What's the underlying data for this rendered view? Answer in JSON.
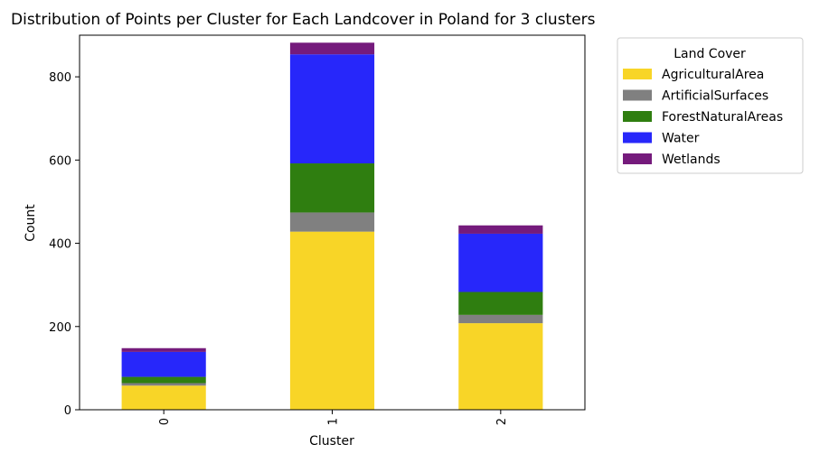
{
  "chart_data": {
    "type": "bar",
    "stacked": true,
    "title": "Distribution of Points per Cluster for Each Landcover in Poland for 3 clusters",
    "xlabel": "Cluster",
    "ylabel": "Count",
    "categories": [
      "0",
      "1",
      "2"
    ],
    "ylim": [
      0,
      900
    ],
    "yticks": [
      0,
      200,
      400,
      600,
      800
    ],
    "grid": false,
    "legend": {
      "title": "Land Cover",
      "placement": "outside-right-top"
    },
    "series": [
      {
        "name": "AgriculturalArea",
        "color": "#F8D527",
        "values": [
          58,
          428,
          208
        ]
      },
      {
        "name": "ArtificialSurfaces",
        "color": "#808080",
        "values": [
          6,
          46,
          20
        ]
      },
      {
        "name": "ForestNaturalAreas",
        "color": "#2F7E10",
        "values": [
          15,
          118,
          55
        ]
      },
      {
        "name": "Water",
        "color": "#2727FA",
        "values": [
          60,
          262,
          140
        ]
      },
      {
        "name": "Wetlands",
        "color": "#751B7C",
        "values": [
          9,
          28,
          20
        ]
      }
    ]
  }
}
